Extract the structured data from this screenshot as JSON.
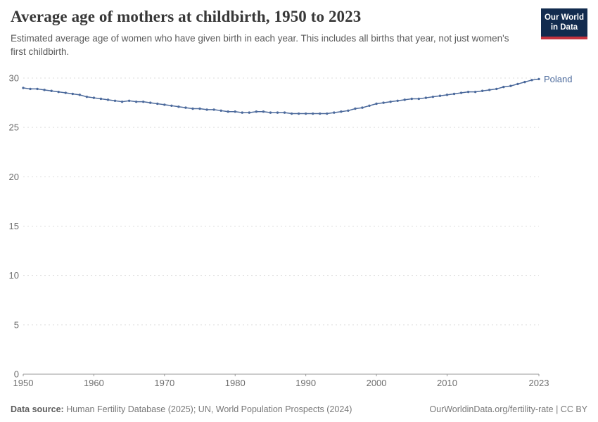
{
  "header": {
    "title": "Average age of mothers at childbirth, 1950 to 2023",
    "subtitle": "Estimated average age of women who have given birth in each year. This includes all births that year, not just women's first childbirth."
  },
  "logo": {
    "line1": "Our World",
    "line2": "in Data",
    "bg_color": "#122B4E",
    "accent_color": "#C4333E"
  },
  "chart_data": {
    "type": "line",
    "title": "Average age of mothers at childbirth, 1950 to 2023",
    "xlabel": "",
    "ylabel": "",
    "xlim": [
      1950,
      2023
    ],
    "ylim": [
      0,
      30
    ],
    "x_ticks": [
      1950,
      1960,
      1970,
      1980,
      1990,
      2000,
      2010,
      2023
    ],
    "y_ticks": [
      0,
      5,
      10,
      15,
      20,
      25,
      30
    ],
    "grid": "horizontal-dashed",
    "legend_position": "end-of-line-label",
    "series": [
      {
        "name": "Poland",
        "color": "#4C6A9C",
        "x": [
          1950,
          1951,
          1952,
          1953,
          1954,
          1955,
          1956,
          1957,
          1958,
          1959,
          1960,
          1961,
          1962,
          1963,
          1964,
          1965,
          1966,
          1967,
          1968,
          1969,
          1970,
          1971,
          1972,
          1973,
          1974,
          1975,
          1976,
          1977,
          1978,
          1979,
          1980,
          1981,
          1982,
          1983,
          1984,
          1985,
          1986,
          1987,
          1988,
          1989,
          1990,
          1991,
          1992,
          1993,
          1994,
          1995,
          1996,
          1997,
          1998,
          1999,
          2000,
          2001,
          2002,
          2003,
          2004,
          2005,
          2006,
          2007,
          2008,
          2009,
          2010,
          2011,
          2012,
          2013,
          2014,
          2015,
          2016,
          2017,
          2018,
          2019,
          2020,
          2021,
          2022,
          2023
        ],
        "values": [
          29.0,
          28.9,
          28.9,
          28.8,
          28.7,
          28.6,
          28.5,
          28.4,
          28.3,
          28.1,
          28.0,
          27.9,
          27.8,
          27.7,
          27.6,
          27.7,
          27.6,
          27.6,
          27.5,
          27.4,
          27.3,
          27.2,
          27.1,
          27.0,
          26.9,
          26.9,
          26.8,
          26.8,
          26.7,
          26.6,
          26.6,
          26.5,
          26.5,
          26.6,
          26.6,
          26.5,
          26.5,
          26.5,
          26.4,
          26.4,
          26.4,
          26.4,
          26.4,
          26.4,
          26.5,
          26.6,
          26.7,
          26.9,
          27.0,
          27.2,
          27.4,
          27.5,
          27.6,
          27.7,
          27.8,
          27.9,
          27.9,
          28.0,
          28.1,
          28.2,
          28.3,
          28.4,
          28.5,
          28.6,
          28.6,
          28.7,
          28.8,
          28.9,
          29.1,
          29.2,
          29.4,
          29.6,
          29.8,
          29.9
        ]
      }
    ],
    "colors": {
      "line": "#4C6A9C",
      "gridline": "#dddddd",
      "axis": "#999999",
      "tick_label": "#6e6e6e"
    }
  },
  "footer": {
    "source_label": "Data source:",
    "source_text": " Human Fertility Database (2025); UN, World Population Prospects (2024)",
    "credit": "OurWorldinData.org/fertility-rate | CC BY"
  }
}
